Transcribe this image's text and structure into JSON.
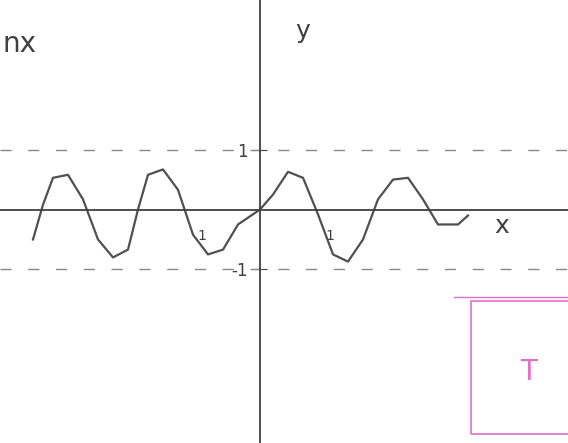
{
  "chart_data": {
    "type": "line",
    "title": "nx",
    "xlabel": "x",
    "ylabel": "y",
    "x": [
      -11.35,
      -10.85,
      -10.35,
      -9.6,
      -8.85,
      -8.1,
      -7.35,
      -6.6,
      -6.1,
      -5.6,
      -4.85,
      -4.1,
      -3.35,
      -2.6,
      -1.85,
      -1.1,
      0,
      0.65,
      1.4,
      2.15,
      2.9,
      3.65,
      4.4,
      5.15,
      5.9,
      6.65,
      7.4,
      8.15,
      8.9,
      9.9,
      10.4
    ],
    "values": [
      -0.5,
      0.08,
      0.53,
      0.58,
      0.17,
      -0.5,
      -0.8,
      -0.67,
      0,
      0.58,
      0.67,
      0.33,
      -0.42,
      -0.75,
      -0.67,
      -0.25,
      0,
      0.25,
      0.63,
      0.53,
      -0.08,
      -0.75,
      -0.87,
      -0.5,
      0.17,
      0.5,
      0.53,
      0.17,
      -0.25,
      -0.25,
      -0.1
    ],
    "color": "#505050",
    "line_style": "solid",
    "xlim": [
      -13,
      15.4
    ],
    "ylim": [
      -3.9,
      3.5
    ],
    "xticks": [],
    "yticks": [
      -1,
      1
    ],
    "grid": true,
    "tick_labels": "y",
    "annotations": [
      "1",
      "1",
      "T"
    ]
  }
}
